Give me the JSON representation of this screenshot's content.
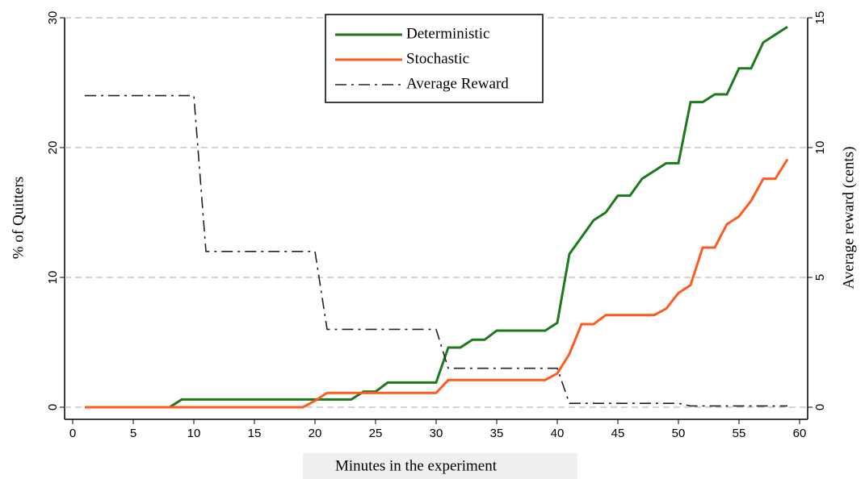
{
  "chart_data": {
    "type": "line",
    "xlabel": "Minutes in the experiment",
    "ylabel": "% of Quitters",
    "y2label": "Average reward (cents)",
    "x": [
      1,
      2,
      3,
      4,
      5,
      6,
      7,
      8,
      9,
      10,
      11,
      12,
      13,
      14,
      15,
      16,
      17,
      18,
      19,
      20,
      21,
      22,
      23,
      24,
      25,
      26,
      27,
      28,
      29,
      30,
      31,
      32,
      33,
      34,
      35,
      36,
      37,
      38,
      39,
      40,
      41,
      42,
      43,
      44,
      45,
      46,
      47,
      48,
      49,
      50,
      51,
      52,
      53,
      54,
      55,
      56,
      57,
      58,
      59
    ],
    "series": [
      {
        "name": "Deterministic",
        "color": "#1b7a1b",
        "style": "solid",
        "values": [
          0,
          0,
          0,
          0,
          0,
          0,
          0,
          0,
          0.6,
          0.6,
          0.6,
          0.6,
          0.6,
          0.6,
          0.6,
          0.6,
          0.6,
          0.6,
          0.6,
          0.6,
          0.6,
          0.6,
          0.6,
          1.2,
          1.2,
          1.9,
          1.9,
          1.9,
          1.9,
          1.9,
          4.6,
          4.6,
          5.2,
          5.2,
          5.9,
          5.9,
          5.9,
          5.9,
          5.9,
          6.5,
          11.8,
          13.1,
          14.4,
          15.0,
          16.3,
          16.3,
          17.6,
          18.2,
          18.8,
          18.8,
          23.5,
          23.5,
          24.1,
          24.1,
          26.1,
          26.1,
          28.1,
          28.7,
          29.3
        ]
      },
      {
        "name": "Stochastic",
        "color": "#ff5a1f",
        "style": "solid",
        "values": [
          0,
          0,
          0,
          0,
          0,
          0,
          0,
          0,
          0,
          0,
          0,
          0,
          0,
          0,
          0,
          0,
          0,
          0,
          0,
          0.5,
          1.1,
          1.1,
          1.1,
          1.1,
          1.1,
          1.1,
          1.1,
          1.1,
          1.1,
          1.1,
          2.1,
          2.1,
          2.1,
          2.1,
          2.1,
          2.1,
          2.1,
          2.1,
          2.1,
          2.6,
          4.1,
          6.4,
          6.4,
          7.1,
          7.1,
          7.1,
          7.1,
          7.1,
          7.6,
          8.8,
          9.4,
          12.3,
          12.3,
          14.1,
          14.7,
          15.9,
          17.6,
          17.6,
          19.1
        ]
      },
      {
        "name": "Average Reward",
        "color": "#222222",
        "style": "dashdot",
        "axis": "y2",
        "values": [
          12,
          12,
          12,
          12,
          12,
          12,
          12,
          12,
          12,
          12,
          6,
          6,
          6,
          6,
          6,
          6,
          6,
          6,
          6,
          6,
          3,
          3,
          3,
          3,
          3,
          3,
          3,
          3,
          3,
          3,
          1.5,
          1.5,
          1.5,
          1.5,
          1.5,
          1.5,
          1.5,
          1.5,
          1.5,
          1.5,
          0.15,
          0.15,
          0.15,
          0.15,
          0.15,
          0.15,
          0.15,
          0.15,
          0.15,
          0.15,
          0.05,
          0.05,
          0.05,
          0.05,
          0.05,
          0.05,
          0.05,
          0.05,
          0.05
        ]
      }
    ],
    "xlim": [
      0,
      60
    ],
    "xticks": [
      0,
      5,
      10,
      15,
      20,
      25,
      30,
      35,
      40,
      45,
      50,
      55,
      60
    ],
    "ylim": [
      0,
      30
    ],
    "yticks": [
      0,
      10,
      20,
      30
    ],
    "y2lim": [
      0,
      15
    ],
    "y2ticks": [
      0,
      5,
      10,
      15
    ],
    "grid": true,
    "legend": "top"
  }
}
